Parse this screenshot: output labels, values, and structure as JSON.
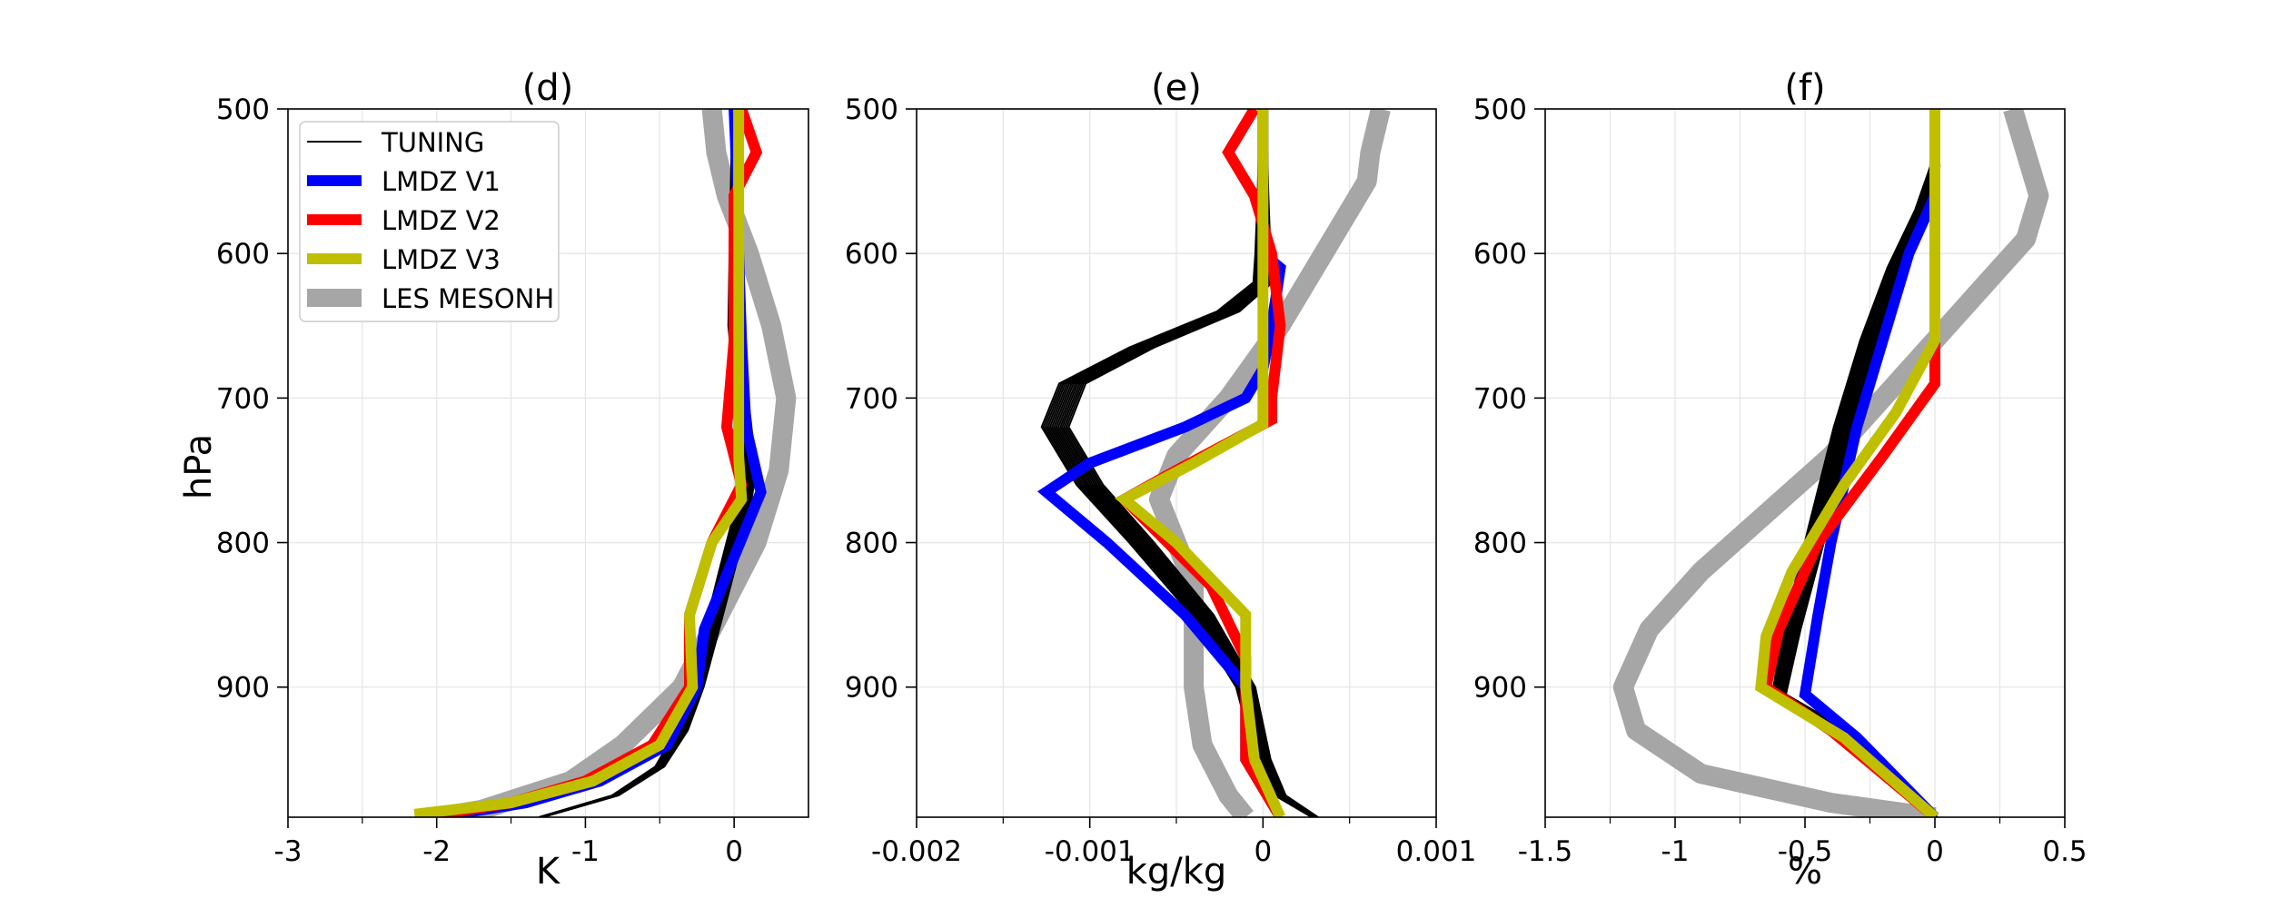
{
  "chart_data": [
    {
      "type": "line",
      "title": "(d)",
      "xlabel": "K",
      "ylabel": "hPa",
      "xlim": [
        -3,
        0.5
      ],
      "ylim": [
        990,
        500
      ],
      "xticks": [
        -3,
        -1.5,
        -1,
        -0.5,
        0
      ],
      "xtick_labels": [
        "-3",
        "-2",
        "-1",
        "0"
      ],
      "xtick_values": [
        -3,
        -2,
        -1,
        0
      ],
      "yticks": [
        500,
        600,
        700,
        800,
        900
      ],
      "grid": true,
      "legend": {
        "placement": "top-left",
        "entries": [
          {
            "label": "TUNING",
            "color": "#000000"
          },
          {
            "label": "LMDZ V1",
            "color": "#0000ff"
          },
          {
            "label": "LMDZ V2",
            "color": "#ff0000"
          },
          {
            "label": "LMDZ V3",
            "color": "#bfbf00"
          },
          {
            "label": "LES MESONH",
            "color": "#a6a6a6"
          }
        ]
      },
      "series": [
        {
          "name": "LES MESONH",
          "color": "#a6a6a6",
          "points": [
            [
              -0.15,
              500
            ],
            [
              -0.12,
              530
            ],
            [
              -0.05,
              560
            ],
            [
              0.1,
              600
            ],
            [
              0.25,
              650
            ],
            [
              0.35,
              700
            ],
            [
              0.3,
              750
            ],
            [
              0.15,
              800
            ],
            [
              -0.1,
              850
            ],
            [
              -0.35,
              900
            ],
            [
              -0.75,
              940
            ],
            [
              -1.1,
              965
            ],
            [
              -1.7,
              985
            ],
            [
              -2.0,
              990
            ]
          ]
        },
        {
          "name": "LMDZ V1",
          "color": "#0000ff",
          "points": [
            [
              0.0,
              500
            ],
            [
              0.02,
              550
            ],
            [
              0.03,
              600
            ],
            [
              0.05,
              660
            ],
            [
              0.08,
              720
            ],
            [
              0.18,
              765
            ],
            [
              0.0,
              810
            ],
            [
              -0.2,
              860
            ],
            [
              -0.25,
              900
            ],
            [
              -0.45,
              940
            ],
            [
              -0.9,
              965
            ],
            [
              -1.4,
              980
            ],
            [
              -2.0,
              990
            ]
          ]
        },
        {
          "name": "LMDZ V2",
          "color": "#ff0000",
          "points": [
            [
              0.05,
              500
            ],
            [
              0.15,
              530
            ],
            [
              0.0,
              560
            ],
            [
              0.0,
              620
            ],
            [
              0.0,
              660
            ],
            [
              -0.05,
              720
            ],
            [
              0.05,
              760
            ],
            [
              -0.15,
              800
            ],
            [
              -0.3,
              850
            ],
            [
              -0.3,
              900
            ],
            [
              -0.55,
              940
            ],
            [
              -1.0,
              965
            ],
            [
              -1.5,
              980
            ],
            [
              -2.1,
              990
            ]
          ]
        },
        {
          "name": "LMDZ V3",
          "color": "#bfbf00",
          "points": [
            [
              0.03,
              500
            ],
            [
              0.03,
              550
            ],
            [
              0.03,
              600
            ],
            [
              0.03,
              650
            ],
            [
              0.03,
              700
            ],
            [
              0.03,
              740
            ],
            [
              0.05,
              770
            ],
            [
              -0.15,
              800
            ],
            [
              -0.3,
              850
            ],
            [
              -0.28,
              900
            ],
            [
              -0.5,
              940
            ],
            [
              -0.95,
              965
            ],
            [
              -1.5,
              980
            ],
            [
              -2.15,
              988
            ]
          ]
        }
      ],
      "tuning": {
        "name": "TUNING",
        "color": "#000000",
        "count": 14,
        "base": [
          [
            0.0,
            500
          ],
          [
            0.0,
            550
          ],
          [
            0.0,
            600
          ],
          [
            0.0,
            650
          ],
          [
            0.05,
            700
          ],
          [
            0.1,
            750
          ],
          [
            0.05,
            780
          ],
          [
            -0.05,
            820
          ],
          [
            -0.15,
            860
          ],
          [
            -0.25,
            900
          ],
          [
            -0.35,
            930
          ],
          [
            -0.5,
            955
          ],
          [
            -0.8,
            975
          ],
          [
            -1.3,
            990
          ]
        ],
        "spread": 0.04
      }
    },
    {
      "type": "line",
      "title": "(e)",
      "xlabel": "kg/kg",
      "ylabel": "",
      "xlim": [
        -0.002,
        0.001
      ],
      "ylim": [
        990,
        500
      ],
      "xtick_labels": [
        "-0.002",
        "-0.001",
        "0",
        "0.001"
      ],
      "xtick_values": [
        -0.002,
        -0.001,
        0,
        0.001
      ],
      "yticks": [
        500,
        600,
        700,
        800,
        900
      ],
      "grid": true,
      "series": [
        {
          "name": "LES MESONH",
          "color": "#a6a6a6",
          "points": [
            [
              0.00068,
              500
            ],
            [
              0.00062,
              530
            ],
            [
              0.0006,
              550
            ],
            [
              0.00035,
              600
            ],
            [
              0.0001,
              650
            ],
            [
              -0.0002,
              700
            ],
            [
              -0.0005,
              740
            ],
            [
              -0.0006,
              770
            ],
            [
              -0.0005,
              800
            ],
            [
              -0.0004,
              830
            ],
            [
              -0.0004,
              900
            ],
            [
              -0.00035,
              940
            ],
            [
              -0.0002,
              975
            ],
            [
              -0.0001,
              990
            ]
          ]
        },
        {
          "name": "LMDZ V1",
          "color": "#0000ff",
          "points": [
            [
              0.0,
              500
            ],
            [
              0.0,
              550
            ],
            [
              0.0,
              600
            ],
            [
              0.0001,
              610
            ],
            [
              5e-05,
              650
            ],
            [
              0.0,
              680
            ],
            [
              -0.0001,
              700
            ],
            [
              -0.00045,
              720
            ],
            [
              -0.001,
              745
            ],
            [
              -0.00125,
              765
            ],
            [
              -0.0009,
              800
            ],
            [
              -0.00045,
              850
            ],
            [
              -0.0001,
              900
            ],
            [
              -0.0001,
              950
            ],
            [
              0.0001,
              990
            ]
          ]
        },
        {
          "name": "LMDZ V2",
          "color": "#ff0000",
          "points": [
            [
              -5e-05,
              500
            ],
            [
              -0.0002,
              530
            ],
            [
              -5e-05,
              560
            ],
            [
              5e-05,
              600
            ],
            [
              0.0001,
              650
            ],
            [
              5e-05,
              700
            ],
            [
              5e-05,
              715
            ],
            [
              -0.0005,
              750
            ],
            [
              -0.0008,
              770
            ],
            [
              -0.0003,
              830
            ],
            [
              -0.0001,
              880
            ],
            [
              -0.0001,
              950
            ],
            [
              0.0001,
              990
            ]
          ]
        },
        {
          "name": "LMDZ V3",
          "color": "#bfbf00",
          "points": [
            [
              0.0,
              500
            ],
            [
              0.0,
              550
            ],
            [
              0.0,
              600
            ],
            [
              0.0,
              650
            ],
            [
              0.0,
              700
            ],
            [
              0.0,
              718
            ],
            [
              -0.0004,
              745
            ],
            [
              -0.0008,
              770
            ],
            [
              -0.0005,
              800
            ],
            [
              -0.0001,
              850
            ],
            [
              -0.0001,
              900
            ],
            [
              -5e-05,
              950
            ],
            [
              0.0001,
              990
            ]
          ]
        }
      ],
      "tuning": {
        "name": "TUNING",
        "color": "#000000",
        "count": 14,
        "base": [
          [
            0.0,
            500
          ],
          [
            0.0,
            560
          ],
          [
            0.0,
            600
          ],
          [
            0.0,
            620
          ],
          [
            -0.0002,
            640
          ],
          [
            -0.0007,
            665
          ],
          [
            -0.0011,
            690
          ],
          [
            -0.0012,
            720
          ],
          [
            -0.001,
            760
          ],
          [
            -0.0007,
            800
          ],
          [
            -0.00035,
            850
          ],
          [
            -0.0001,
            900
          ],
          [
            0.0,
            950
          ],
          [
            0.0001,
            975
          ],
          [
            0.0003,
            990
          ]
        ],
        "spread": 6e-05
      }
    },
    {
      "type": "line",
      "title": "(f)",
      "xlabel": "%",
      "ylabel": "",
      "xlim": [
        -1.5,
        0.5
      ],
      "ylim": [
        990,
        500
      ],
      "xtick_labels": [
        "-1.5",
        "-1",
        "-0.5",
        "0",
        "0.5"
      ],
      "xtick_values": [
        -1.5,
        -1,
        -0.5,
        0,
        0.5
      ],
      "yticks": [
        500,
        600,
        700,
        800,
        900
      ],
      "grid": true,
      "series": [
        {
          "name": "LES MESONH",
          "color": "#a6a6a6",
          "points": [
            [
              0.3,
              500
            ],
            [
              0.35,
              530
            ],
            [
              0.4,
              560
            ],
            [
              0.35,
              590
            ],
            [
              0.2,
              620
            ],
            [
              0.0,
              660
            ],
            [
              -0.2,
              700
            ],
            [
              -0.4,
              740
            ],
            [
              -0.65,
              780
            ],
            [
              -0.9,
              820
            ],
            [
              -1.1,
              860
            ],
            [
              -1.2,
              900
            ],
            [
              -1.15,
              930
            ],
            [
              -0.9,
              960
            ],
            [
              -0.4,
              980
            ],
            [
              0.0,
              990
            ]
          ]
        },
        {
          "name": "LMDZ V1",
          "color": "#0000ff",
          "points": [
            [
              0.0,
              500
            ],
            [
              0.0,
              560
            ],
            [
              -0.1,
              600
            ],
            [
              -0.2,
              660
            ],
            [
              -0.3,
              720
            ],
            [
              -0.4,
              800
            ],
            [
              -0.45,
              850
            ],
            [
              -0.5,
              905
            ],
            [
              -0.3,
              935
            ],
            [
              0.0,
              990
            ]
          ]
        },
        {
          "name": "LMDZ V2",
          "color": "#ff0000",
          "points": [
            [
              0.0,
              500
            ],
            [
              0.0,
              600
            ],
            [
              0.0,
              650
            ],
            [
              0.0,
              690
            ],
            [
              -0.2,
              740
            ],
            [
              -0.45,
              800
            ],
            [
              -0.6,
              860
            ],
            [
              -0.65,
              900
            ],
            [
              -0.4,
              930
            ],
            [
              0.0,
              990
            ]
          ]
        },
        {
          "name": "LMDZ V3",
          "color": "#bfbf00",
          "points": [
            [
              0.0,
              500
            ],
            [
              0.0,
              600
            ],
            [
              0.0,
              660
            ],
            [
              -0.15,
              710
            ],
            [
              -0.35,
              760
            ],
            [
              -0.55,
              820
            ],
            [
              -0.65,
              865
            ],
            [
              -0.67,
              900
            ],
            [
              -0.35,
              935
            ],
            [
              0.0,
              990
            ]
          ]
        }
      ],
      "tuning": {
        "name": "TUNING",
        "color": "#000000",
        "count": 14,
        "base": [
          [
            0.0,
            500
          ],
          [
            0.0,
            540
          ],
          [
            -0.05,
            570
          ],
          [
            -0.15,
            610
          ],
          [
            -0.25,
            660
          ],
          [
            -0.35,
            720
          ],
          [
            -0.45,
            790
          ],
          [
            -0.55,
            860
          ],
          [
            -0.6,
            905
          ],
          [
            -0.35,
            930
          ],
          [
            0.0,
            990
          ]
        ],
        "spread": 0.03
      }
    }
  ]
}
